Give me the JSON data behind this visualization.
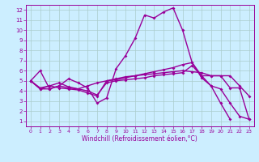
{
  "background_color": "#cceeff",
  "line_color": "#990099",
  "marker": "D",
  "markersize": 2,
  "linewidth": 1.0,
  "xlabel": "Windchill (Refroidissement éolien,°C)",
  "ylabel_ticks": [
    1,
    2,
    3,
    4,
    5,
    6,
    7,
    8,
    9,
    10,
    11,
    12
  ],
  "xlabel_ticks": [
    0,
    1,
    2,
    3,
    4,
    5,
    6,
    7,
    8,
    9,
    10,
    11,
    12,
    13,
    14,
    15,
    16,
    17,
    18,
    19,
    20,
    21,
    22,
    23
  ],
  "xlim": [
    -0.5,
    23.5
  ],
  "ylim": [
    0.5,
    12.5
  ],
  "grid_color": "#aacccc",
  "line1_x": [
    0,
    1,
    2,
    3,
    4,
    5,
    6,
    7,
    8,
    9,
    10,
    11,
    12,
    13,
    14,
    15,
    16,
    17,
    18,
    19,
    20,
    21
  ],
  "line1_y": [
    5.0,
    6.0,
    4.2,
    4.5,
    5.2,
    4.8,
    4.3,
    2.8,
    3.3,
    6.2,
    7.5,
    9.2,
    11.5,
    11.2,
    11.8,
    12.2,
    10.0,
    6.8,
    5.3,
    4.5,
    2.8,
    1.2
  ],
  "line2_x": [
    0,
    1,
    2,
    3,
    4,
    5,
    6,
    7,
    8,
    9,
    10,
    11,
    12,
    13,
    14,
    15,
    16,
    17,
    18,
    19,
    20,
    21,
    22,
    23
  ],
  "line2_y": [
    5.0,
    4.2,
    4.2,
    4.5,
    4.3,
    4.2,
    4.0,
    3.6,
    4.8,
    5.0,
    5.1,
    5.2,
    5.3,
    5.5,
    5.6,
    5.7,
    5.8,
    6.5,
    5.5,
    5.5,
    5.5,
    4.3,
    4.3,
    1.2
  ],
  "line3_x": [
    0,
    1,
    2,
    3,
    4,
    5,
    6,
    7,
    8,
    9,
    10,
    11,
    12,
    13,
    14,
    15,
    16,
    17,
    18,
    19,
    20,
    21,
    22,
    23
  ],
  "line3_y": [
    5.0,
    4.2,
    4.5,
    4.8,
    4.4,
    4.2,
    4.5,
    4.8,
    5.0,
    5.2,
    5.4,
    5.5,
    5.6,
    5.7,
    5.8,
    5.9,
    6.0,
    5.9,
    5.8,
    5.5,
    5.5,
    5.5,
    4.5,
    3.5
  ],
  "line4_x": [
    0,
    1,
    2,
    3,
    4,
    5,
    6,
    7,
    8,
    9,
    10,
    11,
    12,
    13,
    14,
    15,
    16,
    17,
    18,
    19,
    20,
    21,
    22,
    23
  ],
  "line4_y": [
    5.0,
    4.3,
    4.5,
    4.3,
    4.2,
    4.1,
    3.8,
    3.5,
    5.0,
    5.1,
    5.3,
    5.5,
    5.7,
    5.9,
    6.1,
    6.3,
    6.6,
    6.8,
    5.5,
    4.5,
    4.2,
    2.8,
    1.5,
    1.2
  ]
}
